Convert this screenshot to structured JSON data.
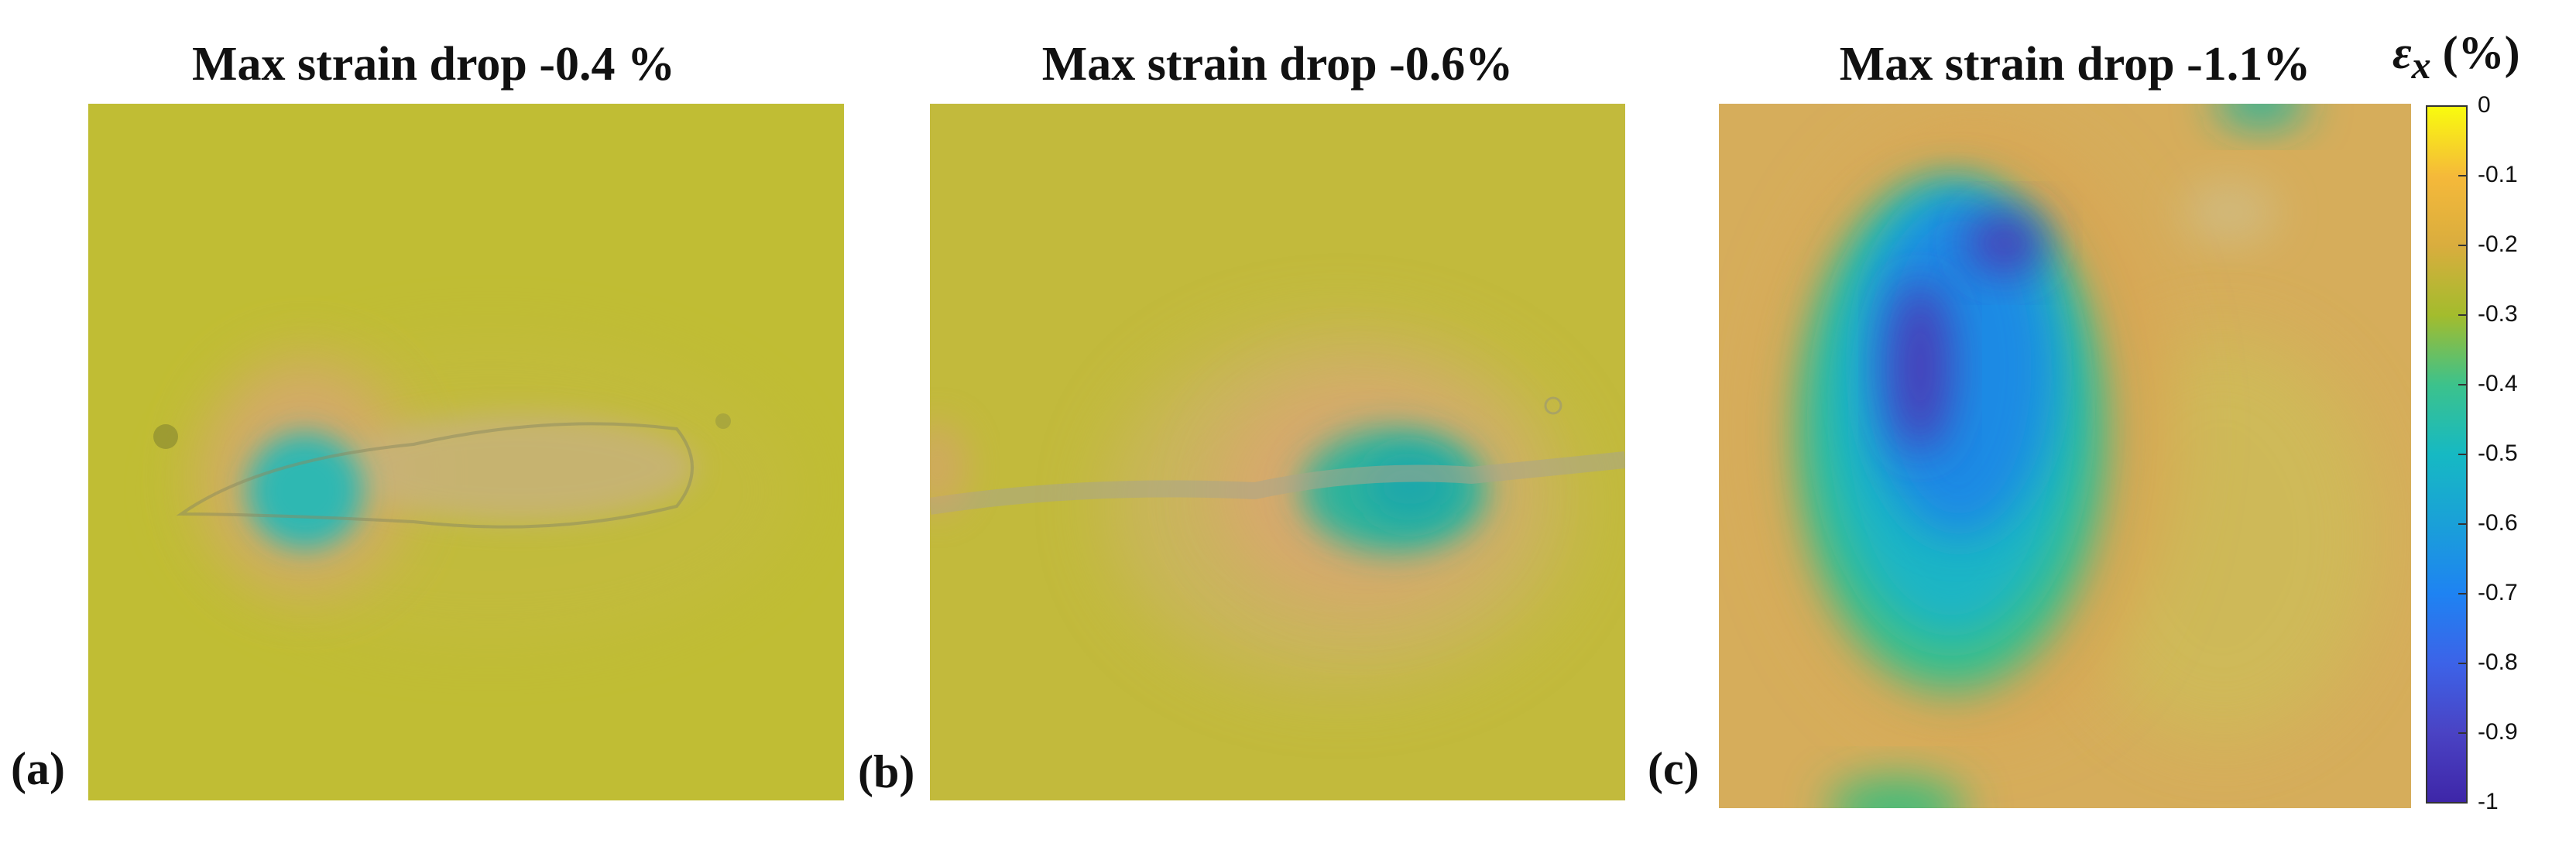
{
  "panels": [
    {
      "letter": "(a)",
      "title": "Max strain drop -0.4 %"
    },
    {
      "letter": "(b)",
      "title": "Max strain drop -0.6%"
    },
    {
      "letter": "(c)",
      "title": "Max strain drop -1.1%"
    }
  ],
  "colorbar": {
    "symbol": "ε",
    "subscript": "x",
    "unit": "(%)",
    "ticks": [
      "0",
      "-0.1",
      "-0.2",
      "-0.3",
      "-0.4",
      "-0.5",
      "-0.6",
      "-0.7",
      "-0.8",
      "-0.9",
      "-1"
    ],
    "colors": [
      "#f9fb0e",
      "#f5b93a",
      "#d9ad3e",
      "#a3bc2d",
      "#3cc28c",
      "#16b9c3",
      "#1aa0d8",
      "#1e83f2",
      "#3c63e8",
      "#4a43c4",
      "#3e26a8"
    ]
  }
}
